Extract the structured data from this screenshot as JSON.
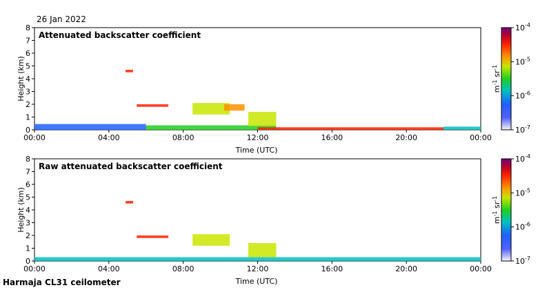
{
  "date_label": "26 Jan 2022",
  "footer": "Harmaja CL31 ceilometer",
  "chart_data": [
    {
      "type": "heatmap",
      "title": "Attenuated backscatter coefficient",
      "xlabel": "Time (UTC)",
      "ylabel": "Height (km)",
      "x_ticks": [
        "00:00",
        "04:00",
        "08:00",
        "12:00",
        "16:00",
        "20:00",
        "00:00"
      ],
      "y_ticks": [
        "0",
        "1",
        "2",
        "3",
        "4",
        "5",
        "6",
        "7",
        "8"
      ],
      "ylim": [
        0,
        8
      ],
      "xlim_hours": [
        0,
        24
      ],
      "colorbar": {
        "scale": "log",
        "min_exp": -7,
        "max_exp": -4,
        "tick_labels": [
          "10^-7",
          "10^-6",
          "10^-5",
          "10^-4"
        ],
        "unit_label": "m^-1 sr^-1"
      },
      "features": [
        {
          "t0": 0.0,
          "t1": 6.0,
          "h0": 0.0,
          "h1": 0.45,
          "level": 0.15
        },
        {
          "t0": 6.0,
          "t1": 13.0,
          "h0": 0.0,
          "h1": 0.35,
          "level": 0.35
        },
        {
          "t0": 12.0,
          "t1": 22.0,
          "h0": 0.0,
          "h1": 0.2,
          "level": 0.75
        },
        {
          "t0": 22.0,
          "t1": 24.0,
          "h0": 0.0,
          "h1": 0.25,
          "level": 0.25
        },
        {
          "t0": 4.9,
          "t1": 5.3,
          "h0": 4.5,
          "h1": 4.7,
          "level": 0.8
        },
        {
          "t0": 5.5,
          "t1": 7.2,
          "h0": 1.8,
          "h1": 2.0,
          "level": 0.75
        },
        {
          "t0": 8.5,
          "t1": 10.5,
          "h0": 1.2,
          "h1": 2.1,
          "level": 0.55
        },
        {
          "t0": 10.2,
          "t1": 11.3,
          "h0": 1.5,
          "h1": 2.0,
          "level": 0.65
        },
        {
          "t0": 11.5,
          "t1": 13.0,
          "h0": 0.3,
          "h1": 1.4,
          "level": 0.5
        }
      ]
    },
    {
      "type": "heatmap",
      "title": "Raw attenuated backscatter coefficient",
      "xlabel": "Time (UTC)",
      "ylabel": "Height (km)",
      "x_ticks": [
        "00:00",
        "04:00",
        "08:00",
        "12:00",
        "16:00",
        "20:00",
        "00:00"
      ],
      "y_ticks": [
        "0",
        "1",
        "2",
        "3",
        "4",
        "5",
        "6",
        "7",
        "8"
      ],
      "ylim": [
        0,
        8
      ],
      "xlim_hours": [
        0,
        24
      ],
      "colorbar": {
        "scale": "log",
        "min_exp": -7,
        "max_exp": -4,
        "tick_labels": [
          "10^-7",
          "10^-6",
          "10^-5",
          "10^-4"
        ],
        "unit_label": "m^-1 sr^-1"
      },
      "features": [
        {
          "t0": 0.0,
          "t1": 24.0,
          "h0": 0.0,
          "h1": 0.3,
          "level": 0.25
        },
        {
          "t0": 4.9,
          "t1": 5.3,
          "h0": 4.5,
          "h1": 4.7,
          "level": 0.8
        },
        {
          "t0": 5.5,
          "t1": 7.2,
          "h0": 1.8,
          "h1": 2.0,
          "level": 0.75
        },
        {
          "t0": 8.5,
          "t1": 10.5,
          "h0": 1.2,
          "h1": 2.1,
          "level": 0.55
        },
        {
          "t0": 11.5,
          "t1": 13.0,
          "h0": 0.3,
          "h1": 1.4,
          "level": 0.5
        }
      ]
    }
  ]
}
